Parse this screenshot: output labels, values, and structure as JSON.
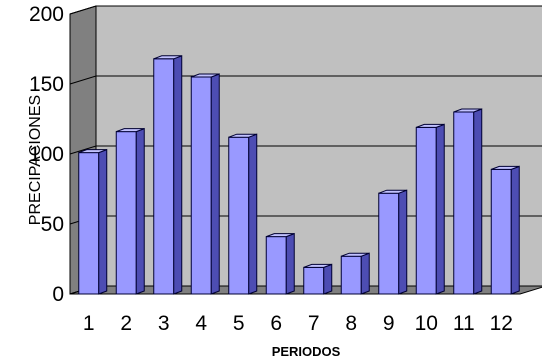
{
  "chart_data": {
    "type": "bar",
    "title": "",
    "xlabel": "PERIODOS",
    "ylabel": "PRECIPACIONES",
    "categories": [
      "1",
      "2",
      "3",
      "4",
      "5",
      "6",
      "7",
      "8",
      "9",
      "10",
      "11",
      "12"
    ],
    "values": [
      101,
      116,
      168,
      155,
      112,
      41,
      19,
      27,
      72,
      119,
      130,
      89
    ],
    "ylim": [
      0,
      200
    ],
    "yticks": [
      0,
      50,
      100,
      150,
      200
    ],
    "grid": true,
    "style": "3d",
    "colors": {
      "bar_front": "#9999ff",
      "bar_side": "#4d4db3",
      "bar_top": "#c2c2ff",
      "bar_outline": "#000033",
      "wall": "#c0c0c0",
      "floor": "#808080",
      "gridline": "#000000"
    }
  }
}
